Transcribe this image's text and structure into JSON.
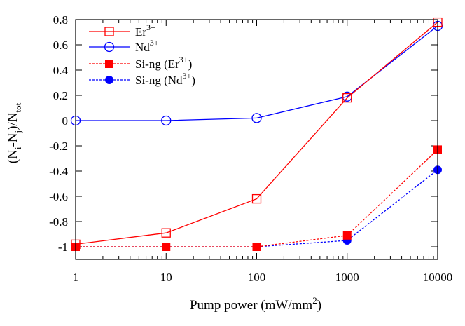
{
  "chart_data": {
    "type": "line",
    "xlabel": {
      "base": "Pump power (mW/mm",
      "sup": "2",
      "tail": ")"
    },
    "ylabel": {
      "p1": "(N",
      "s1": "i",
      "p2": "-N",
      "s2": "j",
      "p3": ")/N",
      "s3": "tot"
    },
    "xscale": "log",
    "x": [
      1,
      10,
      100,
      1000,
      10000
    ],
    "xlim": [
      1,
      10000
    ],
    "ylim": [
      -1.1,
      0.8
    ],
    "x_ticks": [
      "1",
      "10",
      "100",
      "1000",
      "10000"
    ],
    "y_ticks": [
      {
        "v": 0.8,
        "label": "0.8"
      },
      {
        "v": 0.6,
        "label": "0.6"
      },
      {
        "v": 0.4,
        "label": "0.4"
      },
      {
        "v": 0.2,
        "label": "0.2"
      },
      {
        "v": 0,
        "label": "0"
      },
      {
        "v": -0.2,
        "label": "-0.2"
      },
      {
        "v": -0.4,
        "label": "-0.4"
      },
      {
        "v": -0.6,
        "label": "-0.6"
      },
      {
        "v": -0.8,
        "label": "-0.8"
      },
      {
        "v": -1,
        "label": "-1"
      }
    ],
    "grid": false,
    "legend_position": "top-left",
    "series": [
      {
        "key": "er",
        "name": {
          "base": "Er",
          "sup": "3+"
        },
        "values": [
          -0.98,
          -0.89,
          -0.62,
          0.18,
          0.78
        ],
        "color": "#ff0000",
        "marker": "square-open",
        "dash": false
      },
      {
        "key": "nd",
        "name": {
          "base": "Nd",
          "sup": "3+"
        },
        "values": [
          0.0,
          0.0,
          0.02,
          0.19,
          0.75
        ],
        "color": "#0000ff",
        "marker": "circle-open",
        "dash": false
      },
      {
        "key": "si_er",
        "name": {
          "base": "Si-ng (Er",
          "sup": "3+",
          "tail": ")"
        },
        "values": [
          -1.0,
          -1.0,
          -1.0,
          -0.91,
          -0.23
        ],
        "color": "#ff0000",
        "marker": "square-filled",
        "dash": true
      },
      {
        "key": "si_nd",
        "name": {
          "base": "Si-ng (Nd",
          "sup": "3+",
          "tail": ")"
        },
        "values": [
          -1.0,
          -1.0,
          -1.0,
          -0.95,
          -0.39
        ],
        "color": "#0000ff",
        "marker": "circle-filled",
        "dash": true
      }
    ]
  }
}
